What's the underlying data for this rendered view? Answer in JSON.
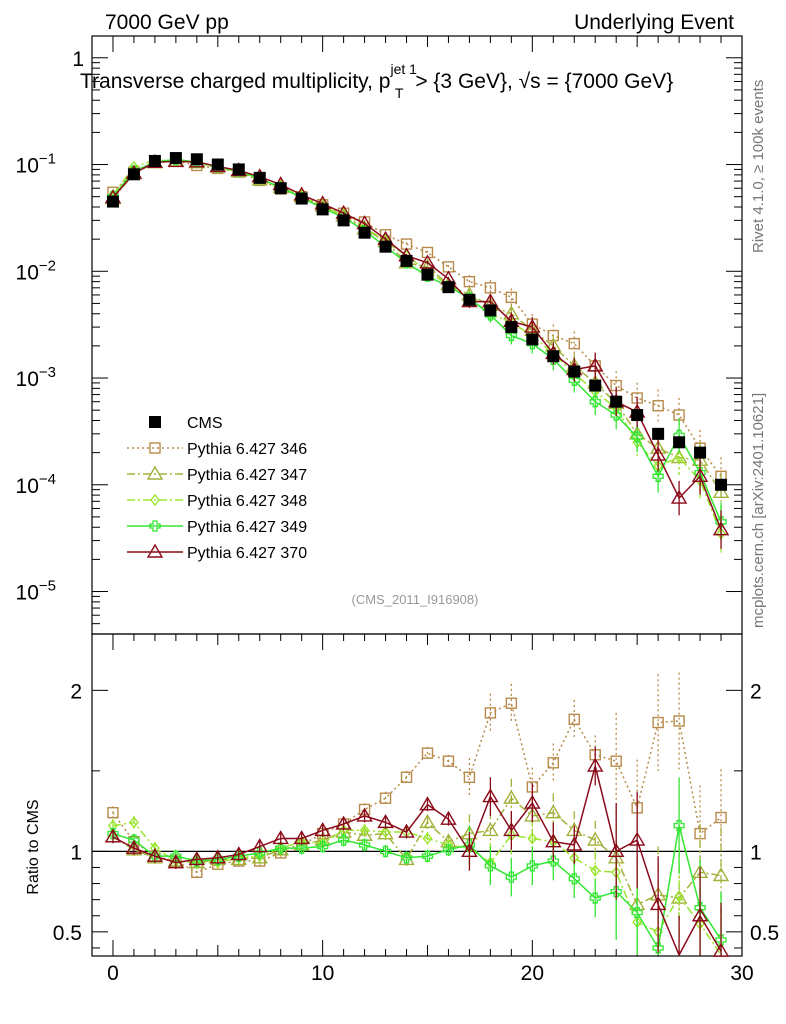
{
  "header": {
    "left": "7000 GeV pp",
    "right": "Underlying Event",
    "title": "Transverse charged multiplicity, p",
    "title_sup": "jet 1",
    "title_sub": "T",
    "title_rest": " > {3 GeV}, √s = {7000 GeV}"
  },
  "side_labels": {
    "rivet": "Rivet 4.1.0, ≥ 100k events",
    "mcplots": "mcplots.cern.ch [arXiv:2401.10621]"
  },
  "reference_tag": "(CMS_2011_I916908)",
  "colors": {
    "cms": "#000000",
    "p346": "#b88a4a",
    "p347": "#a3b03a",
    "p348": "#9be52e",
    "p349": "#33e633",
    "p370": "#8b0a1a"
  },
  "chart_data": [
    {
      "type": "line",
      "panel": "main",
      "yscale": "log",
      "xlim": [
        -1,
        30
      ],
      "ylim": [
        4e-06,
        1.6
      ],
      "y_tick_labels": [
        "10",
        "10",
        "10",
        "10",
        "10",
        "1"
      ],
      "y_tick_exponents": [
        "−5",
        "−4",
        "−3",
        "−2",
        "−1",
        ""
      ],
      "x": [
        0,
        1,
        2,
        3,
        4,
        5,
        6,
        7,
        8,
        9,
        10,
        11,
        12,
        13,
        14,
        15,
        16,
        17,
        18,
        19,
        20,
        21,
        22,
        23,
        24,
        25,
        26,
        27,
        28,
        29
      ],
      "series": [
        {
          "name": "CMS",
          "style": "square-filled",
          "values": [
            0.045,
            0.081,
            0.108,
            0.115,
            0.112,
            0.1,
            0.09,
            0.075,
            0.06,
            0.048,
            0.038,
            0.03,
            0.023,
            0.017,
            0.0125,
            0.0093,
            0.0071,
            0.0054,
            0.0043,
            0.003,
            0.0023,
            0.0016,
            0.00115,
            0.00085,
            0.0006,
            0.00045,
            0.0003,
            0.00025,
            0.0002,
            0.0001
          ]
        },
        {
          "name": "Pythia 6.427 346",
          "style": "square-open-dotted",
          "values": [
            0.055,
            0.085,
            0.105,
            0.108,
            0.098,
            0.092,
            0.085,
            0.071,
            0.059,
            0.05,
            0.042,
            0.035,
            0.029,
            0.022,
            0.018,
            0.015,
            0.011,
            0.008,
            0.007,
            0.0057,
            0.0032,
            0.0025,
            0.0021,
            0.0013,
            0.00085,
            0.00065,
            0.00055,
            0.00045,
            0.00022,
            0.00012
          ]
        },
        {
          "name": "Pythia 6.427 347",
          "style": "triangle-open-dashdot",
          "values": [
            0.048,
            0.082,
            0.104,
            0.108,
            0.104,
            0.095,
            0.086,
            0.072,
            0.061,
            0.05,
            0.041,
            0.033,
            0.025,
            0.019,
            0.012,
            0.011,
            0.0075,
            0.006,
            0.0048,
            0.004,
            0.0028,
            0.002,
            0.0013,
            0.0009,
            0.00058,
            0.0003,
            0.00022,
            0.00018,
            0.00017,
            8.5e-05
          ]
        },
        {
          "name": "Pythia 6.427 348",
          "style": "diamond-open-dashdot",
          "values": [
            0.052,
            0.095,
            0.11,
            0.108,
            0.104,
            0.093,
            0.086,
            0.073,
            0.061,
            0.051,
            0.04,
            0.034,
            0.026,
            0.019,
            0.014,
            0.01,
            0.0074,
            0.0055,
            0.004,
            0.0033,
            0.0025,
            0.0017,
            0.0011,
            0.00075,
            0.00052,
            0.00025,
            0.00015,
            0.00018,
            0.00011,
            3.5e-05
          ]
        },
        {
          "name": "Pythia 6.427 349",
          "style": "cross-solid",
          "values": [
            0.05,
            0.087,
            0.105,
            0.112,
            0.105,
            0.095,
            0.087,
            0.074,
            0.061,
            0.049,
            0.039,
            0.032,
            0.024,
            0.017,
            0.012,
            0.009,
            0.0072,
            0.0056,
            0.0039,
            0.0025,
            0.0021,
            0.0015,
            0.00095,
            0.0006,
            0.00045,
            0.00028,
            0.00012,
            0.00029,
            0.00013,
            4.5e-05
          ]
        },
        {
          "name": "Pythia 6.427 370",
          "style": "triangle-open-solid",
          "values": [
            0.049,
            0.083,
            0.105,
            0.107,
            0.106,
            0.096,
            0.088,
            0.077,
            0.065,
            0.052,
            0.043,
            0.035,
            0.028,
            0.02,
            0.014,
            0.012,
            0.0085,
            0.0052,
            0.0052,
            0.0034,
            0.003,
            0.0017,
            0.0012,
            0.0013,
            0.0006,
            0.00048,
            0.00019,
            7.5e-05,
            0.00012,
            3.8e-05
          ]
        }
      ],
      "legend_position": "center-left"
    },
    {
      "type": "line",
      "panel": "ratio",
      "ylabel": "Ratio to CMS",
      "xlim": [
        -1,
        30
      ],
      "ylim": [
        0.35,
        2.35
      ],
      "y_tick_labels": [
        "0.5",
        "1",
        "2"
      ],
      "x_tick_labels": [
        "0",
        "10",
        "20",
        "30"
      ],
      "x": [
        0,
        1,
        2,
        3,
        4,
        5,
        6,
        7,
        8,
        9,
        10,
        11,
        12,
        13,
        14,
        15,
        16,
        17,
        18,
        19,
        20,
        21,
        22,
        23,
        24,
        25,
        26,
        27,
        28,
        29
      ],
      "series": [
        {
          "name": "Pythia 6.427 346",
          "values": [
            1.24,
            1.06,
            0.97,
            0.94,
            0.87,
            0.92,
            0.94,
            0.94,
            0.99,
            1.04,
            1.11,
            1.17,
            1.26,
            1.33,
            1.46,
            1.61,
            1.56,
            1.46,
            1.86,
            1.92,
            1.4,
            1.55,
            1.82,
            1.6,
            1.56,
            1.27,
            1.8,
            1.81,
            1.11,
            1.21
          ]
        },
        {
          "name": "Pythia 6.427 347",
          "values": [
            1.09,
            1.01,
            0.96,
            0.94,
            0.93,
            0.95,
            0.95,
            0.96,
            1.01,
            1.04,
            1.07,
            1.12,
            1.1,
            1.11,
            0.95,
            1.18,
            1.06,
            1.11,
            1.13,
            1.33,
            1.22,
            1.24,
            1.13,
            1.07,
            0.96,
            0.67,
            0.73,
            0.71,
            0.87,
            0.85
          ]
        },
        {
          "name": "Pythia 6.427 348",
          "values": [
            1.16,
            1.18,
            1.02,
            0.94,
            0.93,
            0.93,
            0.96,
            0.97,
            1.02,
            1.06,
            1.05,
            1.13,
            1.13,
            1.12,
            1.12,
            1.08,
            1.04,
            1.02,
            0.93,
            1.1,
            1.08,
            1.06,
            0.96,
            0.88,
            0.87,
            0.56,
            0.5,
            0.72,
            0.55,
            0.35
          ]
        },
        {
          "name": "Pythia 6.427 349",
          "values": [
            1.11,
            1.07,
            0.97,
            0.97,
            0.94,
            0.95,
            0.97,
            0.99,
            1.02,
            1.02,
            1.03,
            1.07,
            1.04,
            1.0,
            0.96,
            0.97,
            1.01,
            1.04,
            0.91,
            0.84,
            0.91,
            0.94,
            0.83,
            0.71,
            0.75,
            0.62,
            0.4,
            1.16,
            0.65,
            0.45
          ]
        },
        {
          "name": "Pythia 6.427 370",
          "values": [
            1.09,
            1.02,
            0.97,
            0.93,
            0.95,
            0.96,
            0.98,
            1.03,
            1.08,
            1.08,
            1.13,
            1.17,
            1.22,
            1.18,
            1.12,
            1.29,
            1.2,
            1.0,
            1.34,
            1.13,
            1.3,
            1.06,
            1.04,
            1.53,
            1.0,
            1.07,
            0.67,
            0.3,
            0.6,
            0.38
          ]
        }
      ]
    }
  ]
}
